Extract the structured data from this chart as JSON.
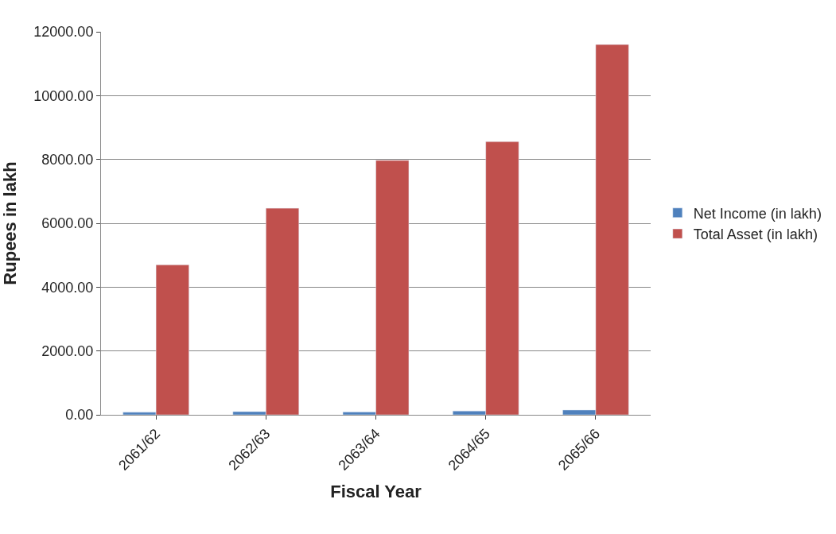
{
  "chart_data": {
    "type": "bar",
    "xlabel": "Fiscal Year",
    "ylabel": "Rupees in lakh",
    "categories": [
      "2061/62",
      "2062/63",
      "2063/64",
      "2064/65",
      "2065/66"
    ],
    "series": [
      {
        "name": "Net Income (in lakh)",
        "color": "#4f81bd",
        "values": [
          80,
          100,
          90,
          120,
          150
        ]
      },
      {
        "name": "Total Asset (in lakh)",
        "color": "#c0504d",
        "values": [
          4700,
          6470,
          7970,
          8560,
          11600
        ]
      }
    ],
    "ylim": [
      0,
      12000
    ],
    "yticks": [
      {
        "value": 0,
        "label": "0.00"
      },
      {
        "value": 2000,
        "label": "2000.00"
      },
      {
        "value": 4000,
        "label": "4000.00"
      },
      {
        "value": 6000,
        "label": "6000.00"
      },
      {
        "value": 8000,
        "label": "8000.00"
      },
      {
        "value": 10000,
        "label": "10000.00"
      },
      {
        "value": 12000,
        "label": "12000.00"
      }
    ],
    "grid": "y",
    "legend": "right"
  }
}
